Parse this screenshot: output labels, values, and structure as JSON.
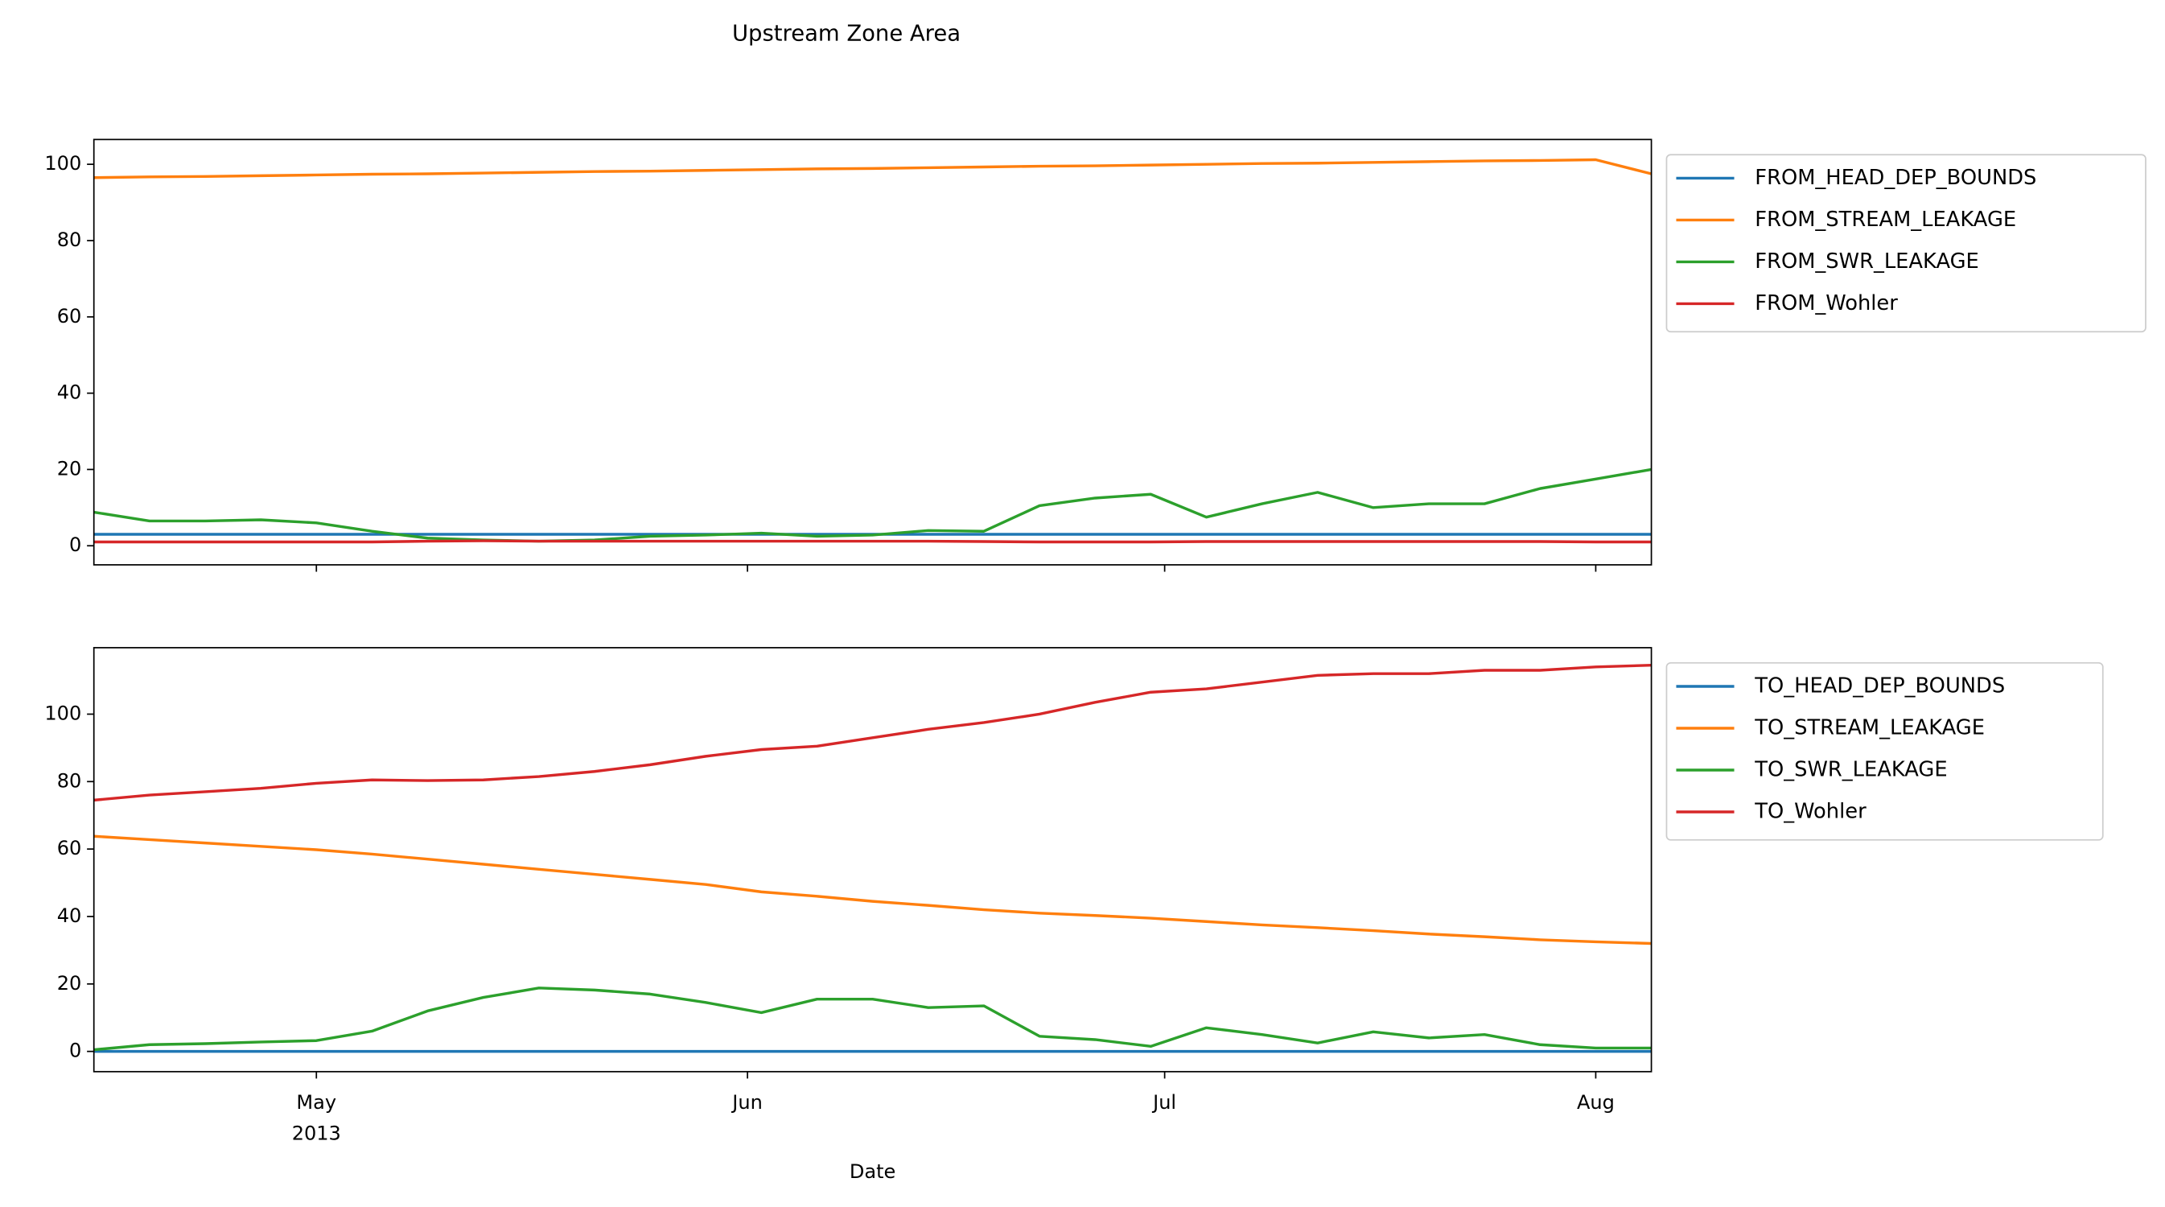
{
  "chart_data": {
    "type": "line",
    "title": "Upstream Zone Area",
    "xlabel": "Date",
    "x": [
      "2013-04-15",
      "2013-04-19",
      "2013-04-23",
      "2013-04-27",
      "2013-05-01",
      "2013-05-05",
      "2013-05-09",
      "2013-05-13",
      "2013-05-17",
      "2013-05-21",
      "2013-05-25",
      "2013-05-29",
      "2013-06-02",
      "2013-06-06",
      "2013-06-10",
      "2013-06-14",
      "2013-06-18",
      "2013-06-22",
      "2013-06-26",
      "2013-06-30",
      "2013-07-04",
      "2013-07-08",
      "2013-07-12",
      "2013-07-16",
      "2013-07-20",
      "2013-07-24",
      "2013-07-28",
      "2013-08-01",
      "2013-08-05"
    ],
    "xlim": [
      "2013-04-15",
      "2013-08-05"
    ],
    "xticks": [
      {
        "value": "2013-05-01",
        "label": "May\n2013"
      },
      {
        "value": "2013-06-01",
        "label": "Jun"
      },
      {
        "value": "2013-07-01",
        "label": "Jul"
      },
      {
        "value": "2013-08-01",
        "label": "Aug"
      }
    ],
    "panels": [
      {
        "ylim": [
          -5,
          106.5
        ],
        "yticks": [
          0,
          20,
          40,
          60,
          80,
          100
        ],
        "legend": "outside upper right",
        "series": [
          {
            "name": "FROM_HEAD_DEP_BOUNDS",
            "color": "#1f77b4",
            "values": [
              3,
              3,
              3,
              3,
              3,
              3,
              3,
              3,
              3,
              3,
              3,
              3,
              3,
              3,
              3,
              3,
              3,
              3,
              3,
              3,
              3,
              3,
              3,
              3,
              3,
              3,
              3,
              3,
              3
            ]
          },
          {
            "name": "FROM_STREAM_LEAKAGE",
            "color": "#ff7f0e",
            "values": [
              96.5,
              96.7,
              96.8,
              97,
              97.2,
              97.4,
              97.5,
              97.7,
              97.9,
              98.1,
              98.2,
              98.4,
              98.6,
              98.8,
              98.9,
              99.1,
              99.3,
              99.5,
              99.6,
              99.8,
              100,
              100.2,
              100.3,
              100.5,
              100.7,
              100.9,
              101,
              101.2,
              97.5
            ]
          },
          {
            "name": "FROM_SWR_LEAKAGE",
            "color": "#2ca02c",
            "values": [
              8.8,
              6.5,
              6.5,
              6.8,
              6,
              3.8,
              2,
              1.5,
              1.2,
              1.5,
              2.5,
              2.8,
              3.3,
              2.5,
              2.8,
              4,
              3.8,
              10.5,
              12.5,
              13.5,
              7.5,
              11,
              14,
              10,
              11,
              11,
              15,
              17.5,
              20
            ]
          },
          {
            "name": "FROM_Wohler",
            "color": "#d62728",
            "values": [
              1,
              1,
              1,
              1,
              1,
              1,
              1.2,
              1.3,
              1.2,
              1.2,
              1.2,
              1.2,
              1.2,
              1.2,
              1.2,
              1.2,
              1.1,
              1,
              1,
              1,
              1.1,
              1.1,
              1.1,
              1.1,
              1.1,
              1.1,
              1.1,
              1,
              1
            ]
          }
        ]
      },
      {
        "ylim": [
          -6,
          119.7
        ],
        "yticks": [
          0,
          20,
          40,
          60,
          80,
          100
        ],
        "legend": "outside upper right",
        "series": [
          {
            "name": "TO_HEAD_DEP_BOUNDS",
            "color": "#1f77b4",
            "values": [
              0,
              0,
              0,
              0,
              0,
              0,
              0,
              0,
              0,
              0,
              0,
              0,
              0,
              0,
              0,
              0,
              0,
              0,
              0,
              0,
              0,
              0,
              0,
              0,
              0,
              0,
              0,
              0,
              0
            ]
          },
          {
            "name": "TO_STREAM_LEAKAGE",
            "color": "#ff7f0e",
            "values": [
              63.8,
              62.8,
              61.8,
              60.8,
              59.8,
              58.5,
              57,
              55.5,
              54,
              52.5,
              51,
              49.5,
              47.3,
              46,
              44.5,
              43.3,
              42,
              41,
              40.3,
              39.5,
              38.5,
              37.5,
              36.7,
              35.8,
              34.8,
              34,
              33.1,
              32.5,
              32
            ]
          },
          {
            "name": "TO_SWR_LEAKAGE",
            "color": "#2ca02c",
            "values": [
              0.5,
              2,
              2.3,
              2.8,
              3.2,
              6,
              12,
              16,
              18.8,
              18.2,
              17,
              14.5,
              11.5,
              15.5,
              15.5,
              13,
              13.5,
              4.5,
              3.5,
              1.5,
              7,
              5,
              2.5,
              5.8,
              4,
              5,
              2,
              1,
              1
            ]
          },
          {
            "name": "TO_Wohler",
            "color": "#d62728",
            "values": [
              74.5,
              76,
              77,
              78,
              79.5,
              80.5,
              80.3,
              80.5,
              81.5,
              83,
              85,
              87.5,
              89.5,
              90.5,
              93,
              95.5,
              97.5,
              100,
              103.5,
              106.5,
              107.5,
              109.5,
              111.5,
              112,
              112,
              113,
              113,
              114,
              114.5
            ]
          }
        ]
      }
    ]
  }
}
